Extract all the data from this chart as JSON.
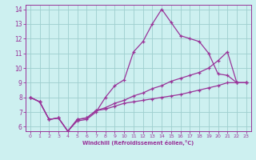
{
  "xlabel": "Windchill (Refroidissement éolien,°C)",
  "xlim": [
    -0.5,
    23.5
  ],
  "ylim": [
    5.7,
    14.3
  ],
  "xticks": [
    0,
    1,
    2,
    3,
    4,
    5,
    6,
    7,
    8,
    9,
    10,
    11,
    12,
    13,
    14,
    15,
    16,
    17,
    18,
    19,
    20,
    21,
    22,
    23
  ],
  "yticks": [
    6,
    7,
    8,
    9,
    10,
    11,
    12,
    13,
    14
  ],
  "bg_color": "#cdf0f0",
  "grid_color": "#9ecece",
  "line_color": "#993399",
  "line1_x": [
    0,
    1,
    2,
    3,
    4,
    5,
    6,
    7,
    8,
    9,
    10,
    11,
    12,
    13,
    14,
    15,
    16,
    17,
    18,
    19,
    20,
    21,
    22,
    23
  ],
  "line1_y": [
    8.0,
    7.7,
    6.5,
    6.6,
    5.7,
    6.4,
    6.5,
    7.0,
    8.0,
    8.8,
    9.2,
    11.1,
    11.8,
    13.0,
    14.0,
    13.1,
    12.2,
    12.0,
    11.8,
    11.0,
    9.6,
    9.5,
    9.0,
    9.0
  ],
  "line2_x": [
    0,
    1,
    2,
    3,
    4,
    5,
    6,
    7,
    8,
    9,
    10,
    11,
    12,
    13,
    14,
    15,
    16,
    17,
    18,
    19,
    20,
    21,
    22,
    23
  ],
  "line2_y": [
    8.0,
    7.7,
    6.5,
    6.6,
    5.7,
    6.5,
    6.6,
    7.1,
    7.3,
    7.6,
    7.8,
    8.1,
    8.3,
    8.6,
    8.8,
    9.1,
    9.3,
    9.5,
    9.7,
    10.0,
    10.5,
    11.1,
    9.0,
    9.0
  ],
  "line3_x": [
    0,
    1,
    2,
    3,
    4,
    5,
    6,
    7,
    8,
    9,
    10,
    11,
    12,
    13,
    14,
    15,
    16,
    17,
    18,
    19,
    20,
    21,
    22,
    23
  ],
  "line3_y": [
    8.0,
    7.7,
    6.5,
    6.6,
    5.7,
    6.5,
    6.6,
    7.1,
    7.2,
    7.4,
    7.6,
    7.7,
    7.8,
    7.9,
    8.0,
    8.1,
    8.2,
    8.35,
    8.5,
    8.65,
    8.8,
    9.0,
    9.0,
    9.0
  ]
}
